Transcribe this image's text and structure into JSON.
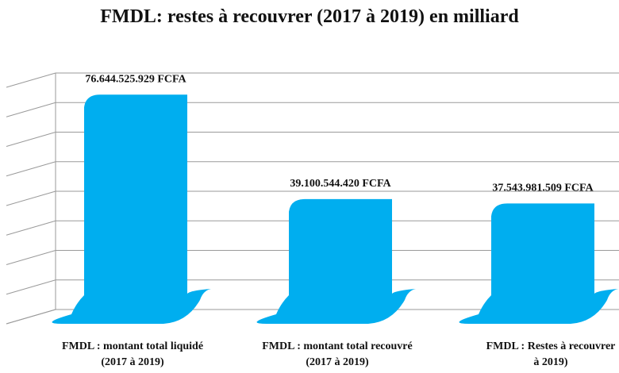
{
  "chart_data": {
    "type": "bar",
    "title": "FMDL: restes à recouvrer (2017 à 2019) en milliard",
    "categories": [
      [
        "FMDL : montant total liquidé",
        "(2017 à 2019)"
      ],
      [
        "FMDL : montant total recouvré",
        "(2017 à 2019)"
      ],
      [
        "FMDL : Restes à recouvrer",
        "à 2019)"
      ]
    ],
    "values": [
      76.644525929,
      39.10054442,
      37.543981509
    ],
    "value_labels": [
      "76.644.525.929 FCFA",
      "39.100.544.420 FCFA",
      "37.543.981.509 FCFA"
    ],
    "ylim": [
      0,
      85
    ],
    "grid": true,
    "bar_color": "#00AEEF",
    "grid_color": "#9a9a9a"
  }
}
